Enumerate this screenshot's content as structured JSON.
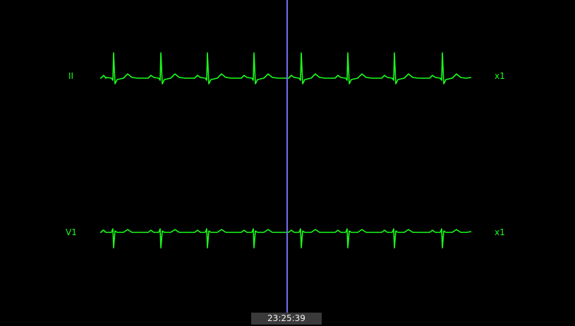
{
  "colors": {
    "background": "#000000",
    "waveform": "#1aff1a",
    "cursor": "#6f6ff0",
    "timestamp_bg": "#3a3a3a",
    "timestamp_text": "#f2f2f2"
  },
  "channels": [
    {
      "lead": "II",
      "gain": "x1"
    },
    {
      "lead": "V1",
      "gain": "x1"
    }
  ],
  "cursor": {
    "time": "23:25:39"
  }
}
